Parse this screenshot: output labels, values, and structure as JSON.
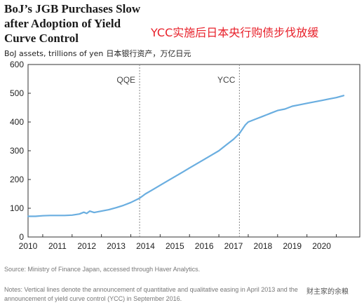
{
  "chart_data": {
    "type": "line",
    "title": "BoJ’s JGB Purchases Slow after Adoption of Yield Curve Control",
    "annotation_cn": "YCC实施后日本央行购债步伐放缓",
    "ylabel": "BoJ assets, trillions of yen",
    "ylabel_cn": "日本银行资产，万亿日元",
    "ylim": [
      0,
      600
    ],
    "yticks": [
      "0",
      "100",
      "200",
      "300",
      "400",
      "500",
      "600"
    ],
    "xticks": [
      "2010",
      "2011",
      "2012",
      "2013",
      "2014",
      "2015",
      "2016",
      "2017",
      "2018",
      "2019",
      "2020"
    ],
    "grid": false,
    "line_color": "#6aaee0",
    "vlines": [
      {
        "label": "QQE",
        "x": 2013.3
      },
      {
        "label": "YCC",
        "x": 2016.7
      }
    ],
    "series": [
      {
        "x": [
          2009.5,
          2009.75,
          2010.0,
          2010.25,
          2010.5,
          2010.75,
          2011.0,
          2011.25,
          2011.4,
          2011.5,
          2011.6,
          2011.75,
          2012.0,
          2012.25,
          2012.5,
          2012.75,
          2013.0,
          2013.3,
          2013.5,
          2013.75,
          2014.0,
          2014.25,
          2014.5,
          2014.75,
          2015.0,
          2015.25,
          2015.5,
          2015.75,
          2016.0,
          2016.25,
          2016.5,
          2016.7,
          2016.9,
          2017.0,
          2017.25,
          2017.5,
          2017.75,
          2018.0,
          2018.25,
          2018.5,
          2018.75,
          2019.0,
          2019.25,
          2019.5,
          2019.75,
          2020.0,
          2020.25
        ],
        "y": [
          72,
          72,
          74,
          75,
          75,
          75,
          76,
          80,
          86,
          82,
          90,
          85,
          90,
          95,
          102,
          110,
          120,
          135,
          150,
          165,
          180,
          195,
          210,
          225,
          240,
          255,
          270,
          285,
          300,
          320,
          340,
          360,
          390,
          400,
          410,
          420,
          430,
          440,
          445,
          455,
          460,
          465,
          470,
          475,
          480,
          485,
          492
        ]
      }
    ]
  },
  "source": "Source: Ministry of Finance Japan, accessed through Haver Analytics.",
  "notes": "Notes: Vertical lines denote the announcement of quantitative and qualitative easing in April 2013 and the announcement of yield curve control (YCC) in September 2016.",
  "watermark": "财主家的余粮"
}
